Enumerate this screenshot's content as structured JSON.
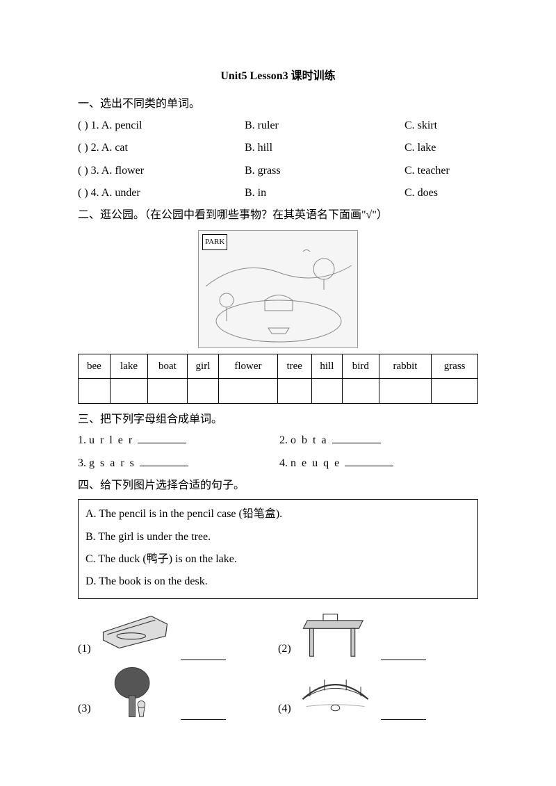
{
  "title": "Unit5 Lesson3 课时训练",
  "s1": {
    "heading": "一、选出不同类的单词。",
    "rows": [
      {
        "n": "(    ) 1. A. pencil",
        "b": "B. ruler",
        "c": "C. skirt"
      },
      {
        "n": "(    ) 2. A. cat",
        "b": "B. hill",
        "c": "C. lake"
      },
      {
        "n": "(    ) 3. A. flower",
        "b": "B. grass",
        "c": "C. teacher"
      },
      {
        "n": "(    ) 4. A. under",
        "b": "B. in",
        "c": "C. does"
      }
    ]
  },
  "s2": {
    "heading": "二、逛公园。（在公园中看到哪些事物？在其英语名下面画\"√\"）",
    "park_label": "PARK",
    "words": [
      "bee",
      "lake",
      "boat",
      "girl",
      "flower",
      "tree",
      "hill",
      "bird",
      "rabbit",
      "grass"
    ]
  },
  "s3": {
    "heading": "三、把下列字母组合成单词。",
    "items": [
      {
        "n": "1.",
        "letters": "urler"
      },
      {
        "n": "2.",
        "letters": "obta"
      },
      {
        "n": "3.",
        "letters": "gsars"
      },
      {
        "n": "4.",
        "letters": "neuqe"
      }
    ]
  },
  "s4": {
    "heading": "四、给下列图片选择合适的句子。",
    "sentences": [
      "A. The pencil is in the pencil case (铅笔盒).",
      "B. The girl is under the tree.",
      "C. The duck (鸭子) is on the lake.",
      "D. The book is on the desk."
    ],
    "pics": [
      "(1)",
      "(2)",
      "(3)",
      "(4)"
    ]
  }
}
